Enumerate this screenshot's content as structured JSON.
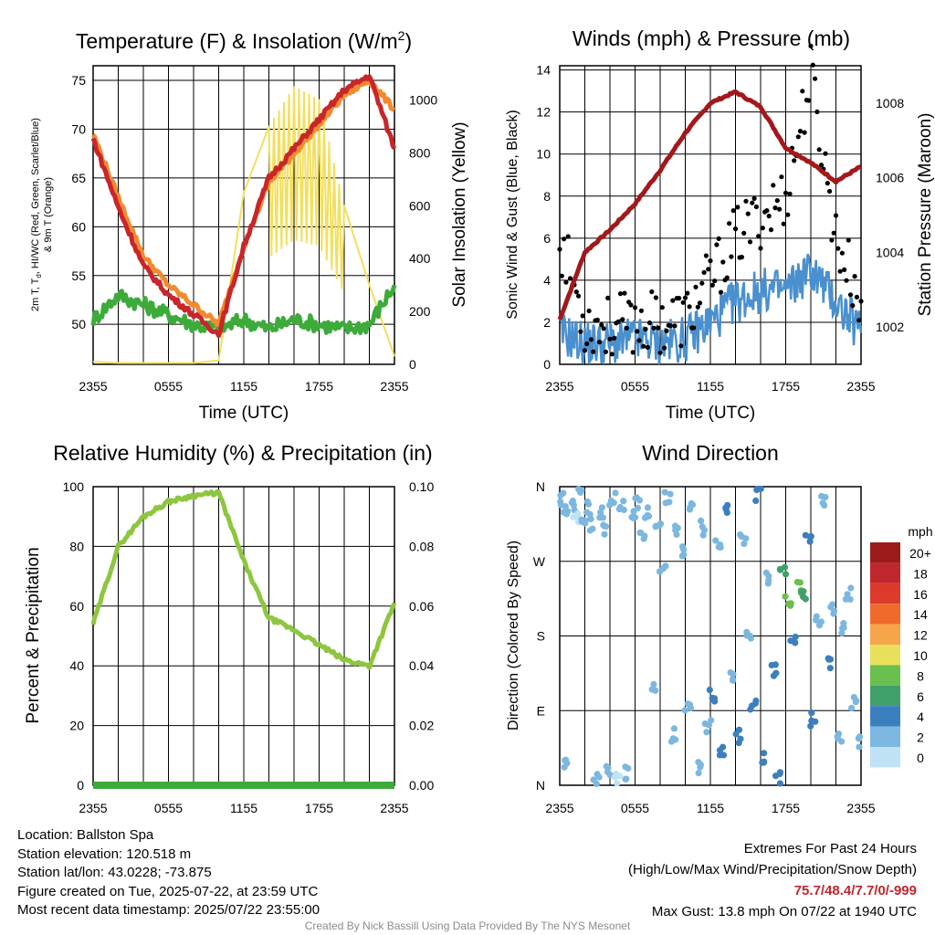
{
  "panels": {
    "temperature": {
      "title": "Temperature (F) & Insolation (W/m²)",
      "title_main": "Temperature (F) & Insolation (W/m",
      "title_sup": "2",
      "title_end": ")",
      "ylabel_line1": "2m T, T",
      "ylabel_sub": "d",
      "ylabel_line1_end": ", HI/WC (Red, Green, Scarlet/Blue)",
      "ylabel_line2": "& 9m T (Orange)",
      "y2label": "Solar Insolation (Yellow)",
      "xlabel": "Time (UTC)"
    },
    "winds": {
      "title": "Winds (mph) & Pressure (mb)",
      "ylabel": "Sonic Wind & Gust (Blue, Black)",
      "y2label": "Station Pressure (Maroon)",
      "xlabel": "Time (UTC)"
    },
    "humidity": {
      "title": "Relative Humidity (%) & Precipitation (in)",
      "ylabel": "Percent & Precipitation"
    },
    "direction": {
      "title": "Wind Direction",
      "ylabel": "Direction (Colored By Speed)",
      "legend_title": "mph",
      "legend_labels": [
        "20+",
        "18",
        "16",
        "14",
        "12",
        "10",
        "8",
        "6",
        "4",
        "2",
        "0"
      ],
      "legend_colors": [
        "#9b1b1b",
        "#c0272d",
        "#dc3a2a",
        "#f06a2c",
        "#f7a54a",
        "#e8e05a",
        "#6bbf4e",
        "#3fa06a",
        "#3b7fbf",
        "#7cb7e0",
        "#bfe3f5"
      ]
    }
  },
  "info": {
    "location": "Location: Ballston Spa",
    "elevation": "Station elevation: 120.518 m",
    "latlon": "Station lat/lon: 43.0228; -73.875",
    "created": "Figure created on Tue, 2025-07-22, at 23:59 UTC",
    "recent": "Most recent data timestamp: 2025/07/22 23:55:00",
    "extremes_title": "Extremes For Past 24 Hours",
    "extremes_sub": "(High/Low/Max Wind/Precipitation/Snow Depth)",
    "extremes_values": "75.7/48.4/7.7/0/-999",
    "max_gust": "Max Gust: 13.8 mph On 07/22 at 1940 UTC",
    "credit": "Created By Nick Bassill Using Data Provided By The NYS Mesonet"
  },
  "chart_data": [
    {
      "type": "line",
      "title": "Temperature (F) & Insolation (W/m2)",
      "xlabel": "Time (UTC)",
      "ylabel": "2m T, Td, HI/WC (Red, Green, Scarlet/Blue) & 9m T (Orange)",
      "y2label": "Solar Insolation (Yellow)",
      "x": [
        "2355",
        "0155",
        "0355",
        "0555",
        "0755",
        "0955",
        "1155",
        "1355",
        "1555",
        "1755",
        "1955",
        "2155",
        "2355"
      ],
      "x_ticks": [
        "2355",
        "0555",
        "1155",
        "1755",
        "2355"
      ],
      "ylim": [
        45.9,
        76.5
      ],
      "yticks": [
        50,
        55,
        60,
        65,
        70,
        75
      ],
      "y2lim": [
        0,
        1130
      ],
      "y2ticks": [
        0,
        200,
        400,
        600,
        800,
        1000
      ],
      "series": [
        {
          "name": "2m T",
          "color": "#c8262b",
          "axis": "left",
          "values": [
            69,
            62,
            56,
            53,
            51,
            49,
            58,
            65,
            68,
            71,
            74,
            75.5,
            68
          ]
        },
        {
          "name": "9m T",
          "color": "#f28a2e",
          "axis": "left",
          "values": [
            69.5,
            63,
            57,
            54,
            52,
            50,
            58,
            64.5,
            67.5,
            70.5,
            73.5,
            75,
            72
          ]
        },
        {
          "name": "Td",
          "color": "#3cab3a",
          "axis": "left",
          "values": [
            50.5,
            53,
            52,
            51,
            50,
            49.5,
            50.5,
            49.5,
            50.5,
            50,
            49.5,
            50,
            54
          ]
        },
        {
          "name": "Solar Insolation",
          "color": "#f3df5c",
          "axis": "right",
          "values": [
            10,
            5,
            5,
            5,
            5,
            15,
            650,
            900,
            1050,
            1000,
            600,
            300,
            30
          ]
        }
      ]
    },
    {
      "type": "line",
      "title": "Winds (mph) & Pressure (mb)",
      "xlabel": "Time (UTC)",
      "ylabel": "Sonic Wind & Gust (Blue, Black)",
      "y2label": "Station Pressure (Maroon)",
      "x": [
        "2355",
        "0155",
        "0355",
        "0555",
        "0755",
        "0955",
        "1155",
        "1355",
        "1555",
        "1755",
        "1955",
        "2155",
        "2355"
      ],
      "x_ticks": [
        "2355",
        "0555",
        "1155",
        "1755",
        "2355"
      ],
      "ylim": [
        0,
        14.2
      ],
      "yticks": [
        0,
        2,
        4,
        6,
        8,
        10,
        12,
        14
      ],
      "y2lim": [
        1001.0,
        1009.0
      ],
      "y2ticks": [
        1002,
        1004,
        1006,
        1008
      ],
      "series": [
        {
          "name": "Sonic Wind",
          "color": "#4a90cf",
          "axis": "left",
          "values": [
            1.5,
            1.0,
            1.0,
            1.2,
            1.0,
            1.2,
            2.0,
            3.0,
            3.5,
            3.5,
            4.5,
            3.0,
            1.5
          ]
        },
        {
          "name": "Gust",
          "color": "#000000",
          "axis": "left",
          "values": [
            6.0,
            2.0,
            1.8,
            2.0,
            2.0,
            2.2,
            4.0,
            6.0,
            7.0,
            8.0,
            13.8,
            6.0,
            3.0
          ]
        },
        {
          "name": "Station Pressure",
          "color": "#a3181b",
          "axis": "right",
          "values": [
            1002.2,
            1004.0,
            1004.6,
            1005.3,
            1006.2,
            1007.2,
            1008.0,
            1008.3,
            1007.9,
            1006.8,
            1006.4,
            1005.9,
            1006.3
          ]
        }
      ]
    },
    {
      "type": "line",
      "title": "Relative Humidity (%) & Precipitation (in)",
      "ylabel": "Percent & Precipitation",
      "x": [
        "2355",
        "0155",
        "0355",
        "0555",
        "0755",
        "0955",
        "1155",
        "1355",
        "1555",
        "1755",
        "1955",
        "2155",
        "2355"
      ],
      "x_ticks": [
        "2355",
        "0555",
        "1155",
        "1755",
        "2355"
      ],
      "ylim": [
        0,
        100
      ],
      "yticks": [
        0,
        20,
        40,
        60,
        80,
        100
      ],
      "y2lim": [
        0,
        0.1
      ],
      "y2ticks": [
        "0.00",
        "0.02",
        "0.04",
        "0.06",
        "0.08",
        "0.10"
      ],
      "series": [
        {
          "name": "Relative Humidity",
          "color": "#8dc63f",
          "axis": "left",
          "values": [
            54,
            80,
            90,
            95,
            97,
            98,
            75,
            56,
            52,
            47,
            42,
            40,
            61
          ]
        },
        {
          "name": "Precipitation",
          "color": "#3cab3a",
          "axis": "right",
          "values": [
            0,
            0,
            0,
            0,
            0,
            0,
            0,
            0,
            0,
            0,
            0,
            0,
            0
          ]
        }
      ]
    },
    {
      "type": "scatter",
      "title": "Wind Direction",
      "ylabel": "Direction (Colored By Speed)",
      "x_ticks": [
        "2355",
        "0555",
        "1155",
        "1755",
        "2355"
      ],
      "y_ticks": [
        "N",
        "E",
        "S",
        "W",
        "N"
      ],
      "ylim": [
        0,
        360
      ],
      "points": [
        {
          "hour": 0.2,
          "dir": 345,
          "speed": 1
        },
        {
          "hour": 0.4,
          "dir": 330,
          "speed": 1
        },
        {
          "hour": 0.6,
          "dir": 25,
          "speed": 2
        },
        {
          "hour": 1.0,
          "dir": 340,
          "speed": 1
        },
        {
          "hour": 1.3,
          "dir": 325,
          "speed": 0
        },
        {
          "hour": 1.6,
          "dir": 350,
          "speed": 1
        },
        {
          "hour": 1.9,
          "dir": 320,
          "speed": 2
        },
        {
          "hour": 2.2,
          "dir": 335,
          "speed": 1
        },
        {
          "hour": 2.5,
          "dir": 315,
          "speed": 2
        },
        {
          "hour": 2.9,
          "dir": 10,
          "speed": 1
        },
        {
          "hour": 3.2,
          "dir": 330,
          "speed": 1
        },
        {
          "hour": 3.5,
          "dir": 310,
          "speed": 2
        },
        {
          "hour": 3.8,
          "dir": 20,
          "speed": 1
        },
        {
          "hour": 4.2,
          "dir": 345,
          "speed": 1
        },
        {
          "hour": 4.6,
          "dir": 5,
          "speed": 0
        },
        {
          "hour": 5.0,
          "dir": 335,
          "speed": 1
        },
        {
          "hour": 5.4,
          "dir": 15,
          "speed": 1
        },
        {
          "hour": 5.8,
          "dir": 325,
          "speed": 2
        },
        {
          "hour": 6.2,
          "dir": 340,
          "speed": 1
        },
        {
          "hour": 6.6,
          "dir": 300,
          "speed": 1
        },
        {
          "hour": 7.0,
          "dir": 330,
          "speed": 2
        },
        {
          "hour": 7.4,
          "dir": 120,
          "speed": 1
        },
        {
          "hour": 7.8,
          "dir": 320,
          "speed": 1
        },
        {
          "hour": 8.2,
          "dir": 260,
          "speed": 2
        },
        {
          "hour": 8.6,
          "dir": 345,
          "speed": 1
        },
        {
          "hour": 9.0,
          "dir": 60,
          "speed": 2
        },
        {
          "hour": 9.4,
          "dir": 310,
          "speed": 2
        },
        {
          "hour": 9.8,
          "dir": 280,
          "speed": 1
        },
        {
          "hour": 10.2,
          "dir": 95,
          "speed": 1
        },
        {
          "hour": 10.6,
          "dir": 340,
          "speed": 2
        },
        {
          "hour": 11.0,
          "dir": 20,
          "speed": 2
        },
        {
          "hour": 11.4,
          "dir": 310,
          "speed": 2
        },
        {
          "hour": 11.8,
          "dir": 70,
          "speed": 2
        },
        {
          "hour": 12.2,
          "dir": 110,
          "speed": 3
        },
        {
          "hour": 12.6,
          "dir": 290,
          "speed": 2
        },
        {
          "hour": 13.0,
          "dir": 45,
          "speed": 3
        },
        {
          "hour": 13.4,
          "dir": 330,
          "speed": 4
        },
        {
          "hour": 13.8,
          "dir": 130,
          "speed": 2
        },
        {
          "hour": 14.2,
          "dir": 60,
          "speed": 3
        },
        {
          "hour": 14.6,
          "dir": 300,
          "speed": 2
        },
        {
          "hour": 15.0,
          "dir": 180,
          "speed": 2
        },
        {
          "hour": 15.4,
          "dir": 100,
          "speed": 3
        },
        {
          "hour": 15.8,
          "dir": 350,
          "speed": 3
        },
        {
          "hour": 16.2,
          "dir": 35,
          "speed": 4
        },
        {
          "hour": 16.6,
          "dir": 250,
          "speed": 2
        },
        {
          "hour": 17.0,
          "dir": 140,
          "speed": 4
        },
        {
          "hour": 17.4,
          "dir": 10,
          "speed": 4
        },
        {
          "hour": 17.8,
          "dir": 255,
          "speed": 6
        },
        {
          "hour": 18.2,
          "dir": 220,
          "speed": 7
        },
        {
          "hour": 18.6,
          "dir": 170,
          "speed": 4
        },
        {
          "hour": 19.0,
          "dir": 240,
          "speed": 7
        },
        {
          "hour": 19.4,
          "dir": 230,
          "speed": 6
        },
        {
          "hour": 19.8,
          "dir": 300,
          "speed": 4
        },
        {
          "hour": 20.2,
          "dir": 80,
          "speed": 4
        },
        {
          "hour": 20.6,
          "dir": 200,
          "speed": 2
        },
        {
          "hour": 21.0,
          "dir": 340,
          "speed": 2
        },
        {
          "hour": 21.4,
          "dir": 150,
          "speed": 3
        },
        {
          "hour": 21.8,
          "dir": 215,
          "speed": 2
        },
        {
          "hour": 22.2,
          "dir": 60,
          "speed": 1
        },
        {
          "hour": 22.6,
          "dir": 190,
          "speed": 2
        },
        {
          "hour": 23.0,
          "dir": 230,
          "speed": 2
        },
        {
          "hour": 23.4,
          "dir": 100,
          "speed": 1
        },
        {
          "hour": 23.8,
          "dir": 50,
          "speed": 2
        }
      ]
    }
  ]
}
